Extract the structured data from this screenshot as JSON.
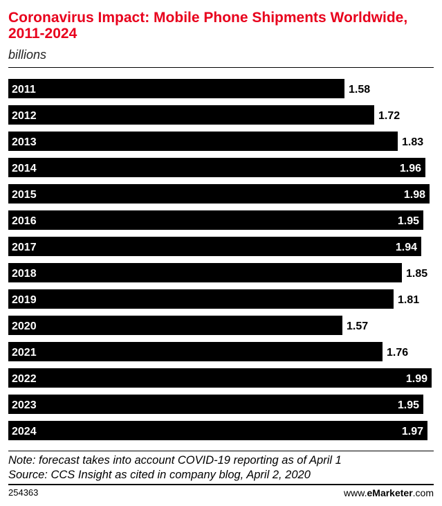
{
  "chart_data": {
    "type": "bar",
    "orientation": "horizontal",
    "title": "Coronavirus Impact: Mobile Phone Shipments Worldwide, 2011-2024",
    "subtitle": "billions",
    "categories": [
      "2011",
      "2012",
      "2013",
      "2014",
      "2015",
      "2016",
      "2017",
      "2018",
      "2019",
      "2020",
      "2021",
      "2022",
      "2023",
      "2024"
    ],
    "values": [
      1.58,
      1.72,
      1.83,
      1.96,
      1.98,
      1.95,
      1.94,
      1.85,
      1.81,
      1.57,
      1.76,
      1.99,
      1.95,
      1.97
    ],
    "value_labels": [
      "1.58",
      "1.72",
      "1.83",
      "1.96",
      "1.98",
      "1.95",
      "1.94",
      "1.85",
      "1.81",
      "1.57",
      "1.76",
      "1.99",
      "1.95",
      "1.97"
    ],
    "xlim": [
      0,
      2.0
    ],
    "bar_color": "#000000",
    "label_color_inside": "#ffffff",
    "label_color_outside": "#000000"
  },
  "notes": {
    "note": "Note: forecast takes into account COVID-19 reporting as of April 1",
    "source": "Source: CCS Insight as cited in company blog, April 2, 2020"
  },
  "footer": {
    "chart_id": "254363",
    "brand_prefix": "www.",
    "brand_e": "e",
    "brand_name": "Marketer",
    "brand_suffix": ".com"
  },
  "colors": {
    "title": "#e8001c",
    "bar": "#000000"
  }
}
